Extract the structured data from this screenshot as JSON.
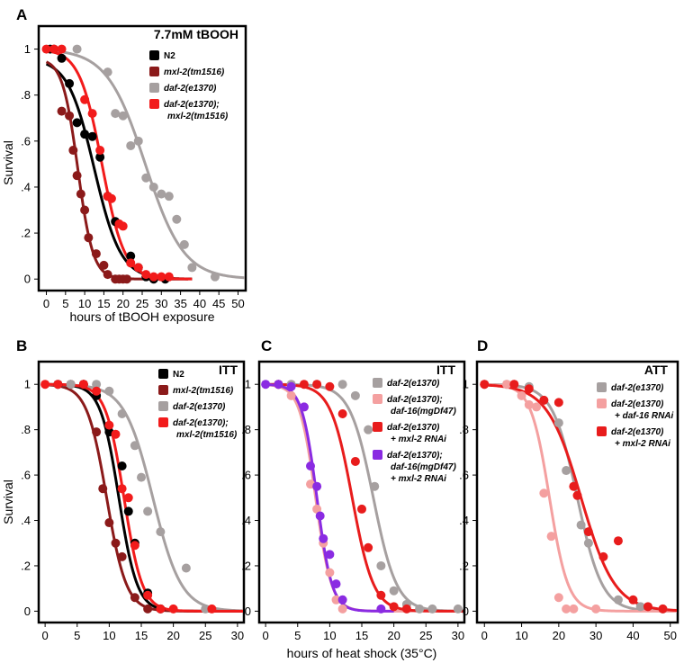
{
  "figure": {
    "shared_y_label": "Survival",
    "shared_x_label_bottom": "hours of heat shock (35°C)"
  },
  "chart_data": [
    {
      "id": "A",
      "type": "scatter",
      "letter": "A",
      "title": "7.7mM tBOOH",
      "xlabel": "hours of tBOOH exposure",
      "ylabel": "Survival",
      "xlim": [
        -2,
        52
      ],
      "ylim": [
        -0.05,
        1.1
      ],
      "xticks": [
        0,
        5,
        10,
        15,
        20,
        25,
        30,
        35,
        40,
        45,
        50
      ],
      "xtick_labels": [
        "0",
        "5",
        "10",
        "15",
        "20",
        "25",
        "30",
        "35",
        "40",
        "45",
        "50"
      ],
      "yticks": [
        0,
        0.2,
        0.4,
        0.6,
        0.8,
        1
      ],
      "ytick_labels": [
        "0",
        ".2",
        ".4",
        ".6",
        ".8",
        "1"
      ],
      "series": [
        {
          "name": "N2",
          "color": "#000000",
          "points": [
            [
              1,
              1
            ],
            [
              4,
              0.96
            ],
            [
              6,
              0.85
            ],
            [
              8,
              0.68
            ],
            [
              10,
              0.63
            ],
            [
              12,
              0.62
            ],
            [
              14,
              0.53
            ],
            [
              16,
              0.36
            ],
            [
              18,
              0.25
            ],
            [
              22,
              0.1
            ],
            [
              24,
              0.05
            ],
            [
              26,
              0.01
            ],
            [
              28,
              0
            ],
            [
              31,
              0
            ]
          ],
          "fit": {
            "x50": 12.5,
            "k": 0.29,
            "top": 0.96,
            "xmin": 0,
            "xmax": 38
          }
        },
        {
          "name": "mxl-2(tm1516)",
          "color": "#8b1a1a",
          "points": [
            [
              2,
              1
            ],
            [
              4,
              0.73
            ],
            [
              6,
              0.71
            ],
            [
              7,
              0.56
            ],
            [
              8,
              0.45
            ],
            [
              9,
              0.37
            ],
            [
              10,
              0.3
            ],
            [
              11,
              0.18
            ],
            [
              13,
              0.11
            ],
            [
              15,
              0.06
            ],
            [
              16,
              0.02
            ],
            [
              18,
              0
            ],
            [
              19,
              0
            ],
            [
              20,
              0
            ],
            [
              21,
              0
            ]
          ],
          "fit": {
            "x50": 8.2,
            "k": 0.5,
            "top": 0.96,
            "xmin": 0,
            "xmax": 37
          }
        },
        {
          "name": "daf-2(e1370)",
          "color": "#a6a0a0",
          "points": [
            [
              8,
              1
            ],
            [
              16,
              0.9
            ],
            [
              18,
              0.72
            ],
            [
              20,
              0.71
            ],
            [
              22,
              0.58
            ],
            [
              24,
              0.6
            ],
            [
              26,
              0.44
            ],
            [
              28,
              0.4
            ],
            [
              30,
              0.37
            ],
            [
              32,
              0.36
            ],
            [
              34,
              0.26
            ],
            [
              36,
              0.15
            ],
            [
              38,
              0.05
            ],
            [
              44,
              0.01
            ]
          ],
          "fit": {
            "x50": 25.8,
            "k": 0.2,
            "top": 1.0,
            "xmin": 0,
            "xmax": 52
          }
        },
        {
          "name": "daf-2(e1370); mxl-2(tm1516)",
          "color": "#f21b1b",
          "points": [
            [
              0,
              1
            ],
            [
              2,
              1
            ],
            [
              4,
              1
            ],
            [
              10,
              0.78
            ],
            [
              12,
              0.72
            ],
            [
              14,
              0.56
            ],
            [
              16,
              0.36
            ],
            [
              17,
              0.35
            ],
            [
              19,
              0.24
            ],
            [
              20,
              0.23
            ],
            [
              22,
              0.07
            ],
            [
              24,
              0.05
            ],
            [
              26,
              0.02
            ],
            [
              28,
              0.01
            ],
            [
              30,
              0.01
            ],
            [
              32,
              0.01
            ]
          ],
          "fit": {
            "x50": 14.5,
            "k": 0.34,
            "top": 1.0,
            "xmin": 0,
            "xmax": 38
          }
        }
      ],
      "legend_entries": [
        "N2",
        "mxl-2(tm1516)",
        "daf-2(e1370)",
        "daf-2(e1370);",
        "mxl-2(tm1516)"
      ],
      "legend_position": "top-right"
    },
    {
      "id": "B",
      "type": "scatter",
      "letter": "B",
      "title": "ITT",
      "xlabel": "",
      "ylabel": "Survival",
      "xlim": [
        -1,
        31
      ],
      "ylim": [
        -0.05,
        1.1
      ],
      "xticks": [
        0,
        5,
        10,
        15,
        20,
        25,
        30
      ],
      "xtick_labels": [
        "0",
        "5",
        "10",
        "15",
        "20",
        "25",
        "30"
      ],
      "yticks": [
        0,
        0.2,
        0.4,
        0.6,
        0.8,
        1
      ],
      "ytick_labels": [
        "0",
        ".2",
        ".4",
        ".6",
        ".8",
        "1"
      ],
      "series": [
        {
          "name": "N2",
          "color": "#000000",
          "points": [
            [
              2,
              1
            ],
            [
              6,
              1
            ],
            [
              8,
              0.95
            ],
            [
              10,
              0.79
            ],
            [
              12,
              0.64
            ],
            [
              13,
              0.44
            ],
            [
              14,
              0.3
            ],
            [
              16,
              0.08
            ],
            [
              18,
              0.01
            ]
          ],
          "fit": {
            "x50": 11.5,
            "k": 0.7,
            "top": 1.0,
            "xmin": 0,
            "xmax": 31
          }
        },
        {
          "name": "mxl-2(tm1516)",
          "color": "#8b1a1a",
          "points": [
            [
              4,
              1
            ],
            [
              6,
              1
            ],
            [
              8,
              0.79
            ],
            [
              9,
              0.54
            ],
            [
              10,
              0.39
            ],
            [
              11,
              0.3
            ],
            [
              12,
              0.24
            ],
            [
              14,
              0.06
            ],
            [
              16,
              0.01
            ]
          ],
          "fit": {
            "x50": 9.6,
            "k": 0.65,
            "top": 1.0,
            "xmin": 0,
            "xmax": 31
          }
        },
        {
          "name": "daf-2(e1370)",
          "color": "#a6a0a0",
          "points": [
            [
              4,
              1
            ],
            [
              8,
              1
            ],
            [
              10,
              0.97
            ],
            [
              12,
              0.87
            ],
            [
              14,
              0.73
            ],
            [
              15,
              0.59
            ],
            [
              16,
              0.44
            ],
            [
              18,
              0.35
            ],
            [
              22,
              0.19
            ],
            [
              25,
              0.01
            ]
          ],
          "fit": {
            "x50": 16.8,
            "k": 0.45,
            "top": 1.0,
            "xmin": 0,
            "xmax": 31
          }
        },
        {
          "name": "daf-2(e1370); mxl-2(tm1516)",
          "color": "#f21b1b",
          "points": [
            [
              0,
              1
            ],
            [
              2,
              1
            ],
            [
              6,
              1
            ],
            [
              8,
              0.97
            ],
            [
              10,
              0.82
            ],
            [
              11,
              0.78
            ],
            [
              12,
              0.54
            ],
            [
              13,
              0.5
            ],
            [
              14,
              0.29
            ],
            [
              16,
              0.07
            ],
            [
              18,
              0.01
            ],
            [
              20,
              0.01
            ],
            [
              26,
              0.01
            ]
          ],
          "fit": {
            "x50": 12.3,
            "k": 0.7,
            "top": 1.0,
            "xmin": 0,
            "xmax": 31
          }
        }
      ],
      "legend_entries": [
        "N2",
        "mxl-2(tm1516)",
        "daf-2(e1370)",
        "daf-2(e1370);",
        "mxl-2(tm1516)"
      ],
      "legend_position": "top-right"
    },
    {
      "id": "C",
      "type": "scatter",
      "letter": "C",
      "title": "ITT",
      "xlabel": "hours of heat shock (35°C)",
      "ylabel": "",
      "xlim": [
        -1,
        31
      ],
      "ylim": [
        -0.05,
        1.1
      ],
      "xticks": [
        0,
        5,
        10,
        15,
        20,
        25,
        30
      ],
      "xtick_labels": [
        "0",
        "5",
        "10",
        "15",
        "20",
        "25",
        "30"
      ],
      "yticks": [
        0,
        0.2,
        0.4,
        0.6,
        0.8,
        1
      ],
      "ytick_labels": [
        "0",
        ".2",
        ".4",
        ".6",
        ".8",
        "1"
      ],
      "series": [
        {
          "name": "daf-2(e1370)",
          "color": "#a6a0a0",
          "points": [
            [
              4,
              1
            ],
            [
              8,
              1
            ],
            [
              12,
              1
            ],
            [
              14,
              0.95
            ],
            [
              16,
              0.8
            ],
            [
              17,
              0.55
            ],
            [
              18,
              0.2
            ],
            [
              20,
              0.09
            ],
            [
              22,
              0.03
            ],
            [
              24,
              0.01
            ],
            [
              26,
              0.01
            ],
            [
              30,
              0.01
            ]
          ],
          "fit": {
            "x50": 16.8,
            "k": 0.55,
            "top": 1.0,
            "xmin": 0,
            "xmax": 31
          }
        },
        {
          "name": "daf-2(e1370); daf-16(mgDf47)",
          "color": "#f4a0a0",
          "points": [
            [
              2,
              1
            ],
            [
              4,
              0.95
            ],
            [
              6,
              0.9
            ],
            [
              7,
              0.56
            ],
            [
              8,
              0.45
            ],
            [
              9,
              0.3
            ],
            [
              10,
              0.17
            ],
            [
              11,
              0.05
            ],
            [
              12,
              0.01
            ]
          ],
          "fit": {
            "x50": 7.8,
            "k": 0.8,
            "top": 1.0,
            "xmin": 0,
            "xmax": 31
          }
        },
        {
          "name": "daf-2(e1370) + mxl-2 RNAi",
          "color": "#e81c1c",
          "points": [
            [
              2,
              1
            ],
            [
              6,
              1
            ],
            [
              8,
              1
            ],
            [
              10,
              0.99
            ],
            [
              12,
              0.87
            ],
            [
              14,
              0.66
            ],
            [
              15,
              0.45
            ],
            [
              16,
              0.28
            ],
            [
              18,
              0.07
            ],
            [
              20,
              0.02
            ],
            [
              22,
              0.01
            ]
          ],
          "fit": {
            "x50": 13.5,
            "k": 0.6,
            "top": 1.0,
            "xmin": 0,
            "xmax": 31
          }
        },
        {
          "name": "daf-2(e1370); daf-16(mgDf47) + mxl-2 RNAi",
          "color": "#8a2be2",
          "points": [
            [
              0,
              1
            ],
            [
              2,
              1
            ],
            [
              4,
              0.99
            ],
            [
              6,
              0.9
            ],
            [
              7,
              0.64
            ],
            [
              8,
              0.55
            ],
            [
              8.5,
              0.42
            ],
            [
              9,
              0.32
            ],
            [
              10,
              0.25
            ],
            [
              11,
              0.12
            ],
            [
              12,
              0.05
            ],
            [
              18,
              0.01
            ]
          ],
          "fit": {
            "x50": 8.0,
            "k": 0.85,
            "top": 1.0,
            "xmin": 0,
            "xmax": 20
          }
        }
      ],
      "legend_entries": [
        "daf-2(e1370)",
        "daf-2(e1370);",
        "daf-16(mgDf47)",
        "daf-2(e1370)",
        "+ mxl-2 RNAi",
        "daf-2(e1370);",
        "daf-16(mgDf47)",
        "+ mxl-2 RNAi"
      ],
      "legend_position": "top-right"
    },
    {
      "id": "D",
      "type": "scatter",
      "letter": "D",
      "title": "ATT",
      "xlabel": "",
      "ylabel": "",
      "xlim": [
        -2,
        52
      ],
      "ylim": [
        -0.05,
        1.1
      ],
      "xticks": [
        0,
        10,
        20,
        30,
        40,
        50
      ],
      "xtick_labels": [
        "0",
        "10",
        "20",
        "30",
        "40",
        "50"
      ],
      "yticks": [
        0,
        0.2,
        0.4,
        0.6,
        0.8,
        1
      ],
      "ytick_labels": [
        "0",
        ".2",
        ".4",
        ".6",
        ".8",
        "1"
      ],
      "series": [
        {
          "name": "daf-2(e1370)",
          "color": "#a6a0a0",
          "points": [
            [
              0,
              1
            ],
            [
              6,
              1
            ],
            [
              12,
              0.99
            ],
            [
              16,
              0.93
            ],
            [
              20,
              0.83
            ],
            [
              22,
              0.62
            ],
            [
              26,
              0.38
            ],
            [
              28,
              0.3
            ],
            [
              36,
              0.05
            ],
            [
              42,
              0.02
            ],
            [
              48,
              0.01
            ]
          ],
          "fit": {
            "x50": 25.0,
            "k": 0.3,
            "top": 1.0,
            "xmin": 0,
            "xmax": 52
          }
        },
        {
          "name": "daf-2(e1370) + daf-16 RNAi",
          "color": "#f4a0a0",
          "points": [
            [
              0,
              1
            ],
            [
              6,
              1
            ],
            [
              8,
              1
            ],
            [
              10,
              0.95
            ],
            [
              12,
              0.91
            ],
            [
              14,
              0.9
            ],
            [
              16,
              0.52
            ],
            [
              18,
              0.33
            ],
            [
              20,
              0.06
            ],
            [
              22,
              0.01
            ],
            [
              24,
              0.01
            ],
            [
              30,
              0.01
            ]
          ],
          "fit": {
            "x50": 17.5,
            "k": 0.4,
            "top": 1.0,
            "xmin": 0,
            "xmin2": 0,
            "xmax": 52
          }
        },
        {
          "name": "daf-2(e1370) + mxl-2 RNAi",
          "color": "#e81c1c",
          "points": [
            [
              0,
              1
            ],
            [
              8,
              1
            ],
            [
              12,
              0.98
            ],
            [
              16,
              0.93
            ],
            [
              20,
              0.92
            ],
            [
              24,
              0.55
            ],
            [
              25,
              0.51
            ],
            [
              28,
              0.35
            ],
            [
              32,
              0.24
            ],
            [
              36,
              0.31
            ],
            [
              40,
              0.05
            ],
            [
              44,
              0.02
            ],
            [
              48,
              0.01
            ]
          ],
          "fit": {
            "x50": 26.0,
            "k": 0.22,
            "top": 1.0,
            "xmin": 0,
            "xmax": 52
          }
        }
      ],
      "legend_entries": [
        "daf-2(e1370)",
        "daf-2(e1370)",
        "+ daf-16 RNAi",
        "daf-2(e1370)",
        "+ mxl-2 RNAi"
      ],
      "legend_position": "top-right"
    }
  ]
}
